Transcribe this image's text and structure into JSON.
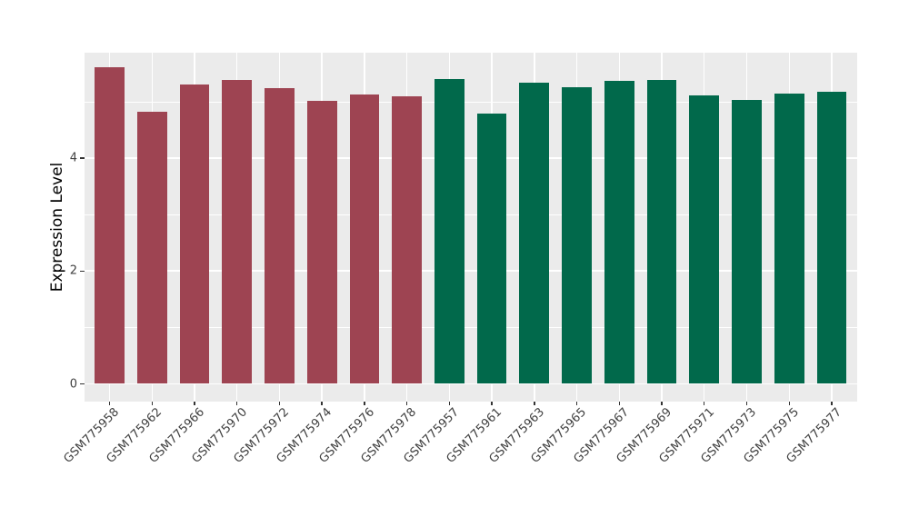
{
  "figure": {
    "background": "#FFFFFF",
    "panel_background": "#EBEBEB",
    "gridline_color": "#FFFFFF",
    "tick_color": "#333333",
    "axis_text_color": "#404040",
    "axis_title_color": "#000000"
  },
  "chart_data": {
    "type": "bar",
    "title": "",
    "xlabel": "",
    "ylabel": "Expression Level",
    "ylim": [
      0,
      5.9
    ],
    "yticks_major": [
      0,
      2,
      4
    ],
    "yticks_minor": [
      1,
      3,
      5
    ],
    "grid": true,
    "legend_position": "none",
    "x_label_rotation_deg": 45,
    "categories": [
      "GSM775958",
      "GSM775962",
      "GSM775966",
      "GSM775970",
      "GSM775972",
      "GSM775974",
      "GSM775976",
      "GSM775978",
      "GSM775957",
      "GSM775961",
      "GSM775963",
      "GSM775965",
      "GSM775967",
      "GSM775969",
      "GSM775971",
      "GSM775973",
      "GSM775975",
      "GSM775977"
    ],
    "values": [
      5.61,
      4.83,
      5.31,
      5.39,
      5.24,
      5.02,
      5.13,
      5.1,
      5.41,
      4.79,
      5.33,
      5.26,
      5.37,
      5.39,
      5.11,
      5.03,
      5.14,
      5.18
    ],
    "groups": [
      "group-1",
      "group-1",
      "group-1",
      "group-1",
      "group-1",
      "group-1",
      "group-1",
      "group-1",
      "group-2",
      "group-2",
      "group-2",
      "group-2",
      "group-2",
      "group-2",
      "group-2",
      "group-2",
      "group-2",
      "group-2"
    ],
    "group_colors": {
      "group-1": "#9E4452",
      "group-2": "#01694B"
    }
  }
}
